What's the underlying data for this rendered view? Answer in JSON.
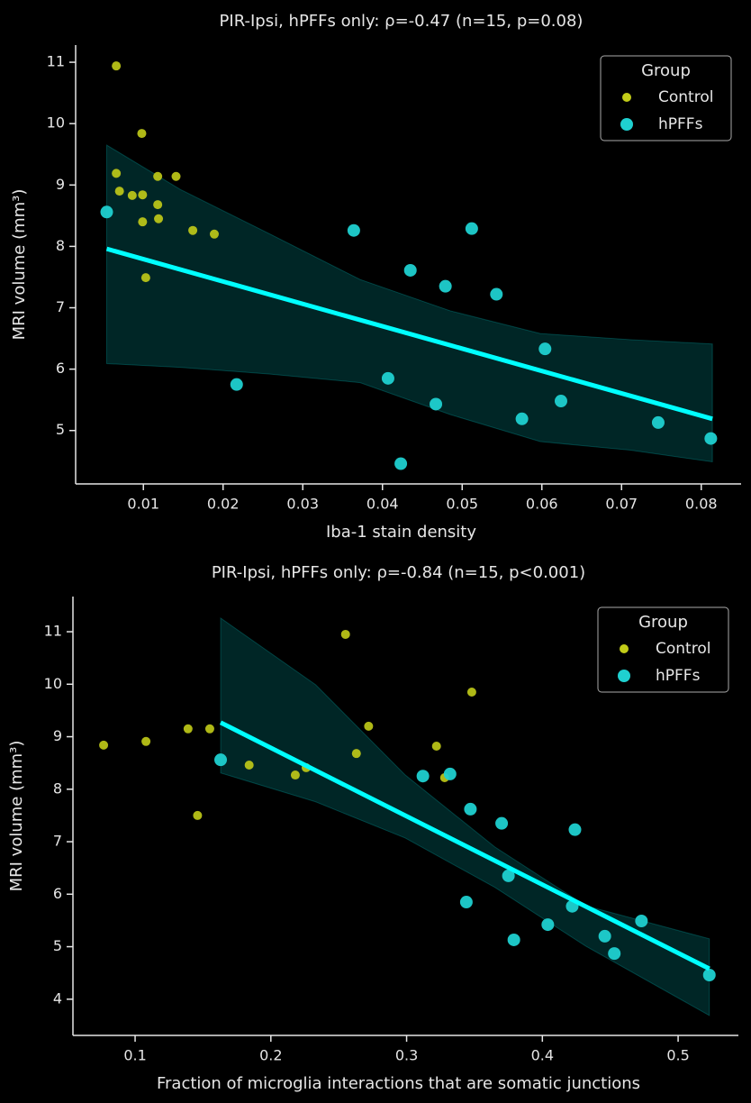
{
  "chart_data": [
    {
      "type": "scatter",
      "title": "PIR-Ipsi, hPFFs only: ρ=-0.47 (n=15, p=0.08)",
      "xlabel": "Iba-1 stain density",
      "ylabel": "MRI volume (mm³)",
      "xlim": [
        0.0015,
        0.085
      ],
      "ylim": [
        4.13,
        11.28
      ],
      "xticks": [
        0.01,
        0.02,
        0.03,
        0.04,
        0.05,
        0.06,
        0.07,
        0.08
      ],
      "yticks": [
        5,
        6,
        7,
        8,
        9,
        10,
        11
      ],
      "legend_title": "Group",
      "legend": "upper right",
      "series": [
        {
          "name": "Control",
          "color": "#c2cc18",
          "x": [
            0.0066,
            0.0098,
            0.0066,
            0.007,
            0.0086,
            0.0099,
            0.0118,
            0.0141,
            0.0118,
            0.0099,
            0.0119,
            0.0162,
            0.0189,
            0.0103
          ],
          "values": [
            10.94,
            9.84,
            9.19,
            8.9,
            8.83,
            8.84,
            9.14,
            9.14,
            8.68,
            8.4,
            8.45,
            8.26,
            8.2,
            7.49
          ]
        },
        {
          "name": "hPFFs",
          "color": "#1fd0d0",
          "x": [
            0.0054,
            0.0217,
            0.0364,
            0.0435,
            0.0479,
            0.0512,
            0.0543,
            0.0604,
            0.0407,
            0.0467,
            0.0624,
            0.0575,
            0.0746,
            0.0812,
            0.0423
          ],
          "values": [
            8.56,
            5.75,
            8.26,
            7.61,
            7.35,
            8.29,
            7.22,
            6.33,
            5.85,
            5.43,
            5.48,
            5.19,
            5.13,
            4.87,
            4.46
          ]
        }
      ],
      "fit": {
        "color": "#00ffff",
        "x": [
          0.0054,
          0.0814
        ],
        "values": [
          7.96,
          5.19
        ]
      },
      "band": {
        "color": "#00ffff",
        "x": [
          0.0054,
          0.0146,
          0.0259,
          0.0372,
          0.0485,
          0.0598,
          0.0711,
          0.0814
        ],
        "upper": [
          9.65,
          8.93,
          8.2,
          7.46,
          6.95,
          6.58,
          6.48,
          6.41
        ],
        "lower": [
          6.09,
          6.03,
          5.92,
          5.78,
          5.26,
          4.82,
          4.68,
          4.49
        ]
      }
    },
    {
      "type": "scatter",
      "title": "PIR-Ipsi, hPFFs only: ρ=-0.84 (n=15, p<0.001)",
      "xlabel": "Fraction of microglia interactions that are somatic junctions",
      "ylabel": "MRI volume (mm³)",
      "xlim": [
        0.0542,
        0.5444
      ],
      "ylim": [
        3.31,
        11.67
      ],
      "xticks": [
        0.1,
        0.2,
        0.3,
        0.4,
        0.5
      ],
      "yticks": [
        4,
        5,
        6,
        7,
        8,
        9,
        10,
        11
      ],
      "legend_title": "Group",
      "legend": "upper right",
      "series": [
        {
          "name": "Control",
          "color": "#c2cc18",
          "x": [
            0.0768,
            0.108,
            0.139,
            0.155,
            0.146,
            0.184,
            0.218,
            0.226,
            0.255,
            0.263,
            0.272,
            0.322,
            0.328,
            0.348
          ],
          "values": [
            8.84,
            8.91,
            9.15,
            9.15,
            7.5,
            8.46,
            8.27,
            8.41,
            10.95,
            8.68,
            9.2,
            8.82,
            8.22,
            9.85
          ]
        },
        {
          "name": "hPFFs",
          "color": "#1fd0d0",
          "x": [
            0.163,
            0.312,
            0.332,
            0.347,
            0.37,
            0.424,
            0.375,
            0.344,
            0.379,
            0.404,
            0.422,
            0.446,
            0.453,
            0.473,
            0.523
          ],
          "values": [
            8.56,
            8.25,
            8.29,
            7.62,
            7.35,
            7.23,
            6.35,
            5.85,
            5.13,
            5.42,
            5.77,
            5.2,
            4.87,
            5.49,
            4.46
          ]
        }
      ],
      "fit": {
        "color": "#00ffff",
        "x": [
          0.163,
          0.523
        ],
        "values": [
          9.27,
          4.58
        ]
      },
      "band": {
        "color": "#00ffff",
        "x": [
          0.163,
          0.233,
          0.299,
          0.365,
          0.432,
          0.523
        ],
        "upper": [
          11.26,
          9.99,
          8.27,
          6.9,
          5.78,
          5.15
        ],
        "lower": [
          8.31,
          7.76,
          7.07,
          6.13,
          5.01,
          3.69
        ]
      }
    }
  ]
}
